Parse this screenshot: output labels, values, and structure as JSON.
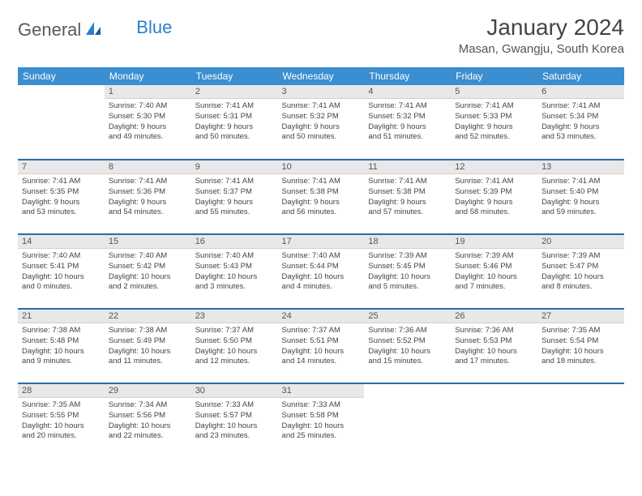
{
  "brand": {
    "part1": "General",
    "part2": "Blue"
  },
  "title": "January 2024",
  "location": "Masan, Gwangju, South Korea",
  "colors": {
    "header_bg": "#3b8ecf",
    "brand_blue": "#2a7fc9",
    "row_border": "#2a6ca8",
    "daynum_bg": "#e8e8e8"
  },
  "daysOfWeek": [
    "Sunday",
    "Monday",
    "Tuesday",
    "Wednesday",
    "Thursday",
    "Friday",
    "Saturday"
  ],
  "weeks": [
    [
      null,
      {
        "n": "1",
        "sr": "Sunrise: 7:40 AM",
        "ss": "Sunset: 5:30 PM",
        "dl1": "Daylight: 9 hours",
        "dl2": "and 49 minutes."
      },
      {
        "n": "2",
        "sr": "Sunrise: 7:41 AM",
        "ss": "Sunset: 5:31 PM",
        "dl1": "Daylight: 9 hours",
        "dl2": "and 50 minutes."
      },
      {
        "n": "3",
        "sr": "Sunrise: 7:41 AM",
        "ss": "Sunset: 5:32 PM",
        "dl1": "Daylight: 9 hours",
        "dl2": "and 50 minutes."
      },
      {
        "n": "4",
        "sr": "Sunrise: 7:41 AM",
        "ss": "Sunset: 5:32 PM",
        "dl1": "Daylight: 9 hours",
        "dl2": "and 51 minutes."
      },
      {
        "n": "5",
        "sr": "Sunrise: 7:41 AM",
        "ss": "Sunset: 5:33 PM",
        "dl1": "Daylight: 9 hours",
        "dl2": "and 52 minutes."
      },
      {
        "n": "6",
        "sr": "Sunrise: 7:41 AM",
        "ss": "Sunset: 5:34 PM",
        "dl1": "Daylight: 9 hours",
        "dl2": "and 53 minutes."
      }
    ],
    [
      {
        "n": "7",
        "sr": "Sunrise: 7:41 AM",
        "ss": "Sunset: 5:35 PM",
        "dl1": "Daylight: 9 hours",
        "dl2": "and 53 minutes."
      },
      {
        "n": "8",
        "sr": "Sunrise: 7:41 AM",
        "ss": "Sunset: 5:36 PM",
        "dl1": "Daylight: 9 hours",
        "dl2": "and 54 minutes."
      },
      {
        "n": "9",
        "sr": "Sunrise: 7:41 AM",
        "ss": "Sunset: 5:37 PM",
        "dl1": "Daylight: 9 hours",
        "dl2": "and 55 minutes."
      },
      {
        "n": "10",
        "sr": "Sunrise: 7:41 AM",
        "ss": "Sunset: 5:38 PM",
        "dl1": "Daylight: 9 hours",
        "dl2": "and 56 minutes."
      },
      {
        "n": "11",
        "sr": "Sunrise: 7:41 AM",
        "ss": "Sunset: 5:38 PM",
        "dl1": "Daylight: 9 hours",
        "dl2": "and 57 minutes."
      },
      {
        "n": "12",
        "sr": "Sunrise: 7:41 AM",
        "ss": "Sunset: 5:39 PM",
        "dl1": "Daylight: 9 hours",
        "dl2": "and 58 minutes."
      },
      {
        "n": "13",
        "sr": "Sunrise: 7:41 AM",
        "ss": "Sunset: 5:40 PM",
        "dl1": "Daylight: 9 hours",
        "dl2": "and 59 minutes."
      }
    ],
    [
      {
        "n": "14",
        "sr": "Sunrise: 7:40 AM",
        "ss": "Sunset: 5:41 PM",
        "dl1": "Daylight: 10 hours",
        "dl2": "and 0 minutes."
      },
      {
        "n": "15",
        "sr": "Sunrise: 7:40 AM",
        "ss": "Sunset: 5:42 PM",
        "dl1": "Daylight: 10 hours",
        "dl2": "and 2 minutes."
      },
      {
        "n": "16",
        "sr": "Sunrise: 7:40 AM",
        "ss": "Sunset: 5:43 PM",
        "dl1": "Daylight: 10 hours",
        "dl2": "and 3 minutes."
      },
      {
        "n": "17",
        "sr": "Sunrise: 7:40 AM",
        "ss": "Sunset: 5:44 PM",
        "dl1": "Daylight: 10 hours",
        "dl2": "and 4 minutes."
      },
      {
        "n": "18",
        "sr": "Sunrise: 7:39 AM",
        "ss": "Sunset: 5:45 PM",
        "dl1": "Daylight: 10 hours",
        "dl2": "and 5 minutes."
      },
      {
        "n": "19",
        "sr": "Sunrise: 7:39 AM",
        "ss": "Sunset: 5:46 PM",
        "dl1": "Daylight: 10 hours",
        "dl2": "and 7 minutes."
      },
      {
        "n": "20",
        "sr": "Sunrise: 7:39 AM",
        "ss": "Sunset: 5:47 PM",
        "dl1": "Daylight: 10 hours",
        "dl2": "and 8 minutes."
      }
    ],
    [
      {
        "n": "21",
        "sr": "Sunrise: 7:38 AM",
        "ss": "Sunset: 5:48 PM",
        "dl1": "Daylight: 10 hours",
        "dl2": "and 9 minutes."
      },
      {
        "n": "22",
        "sr": "Sunrise: 7:38 AM",
        "ss": "Sunset: 5:49 PM",
        "dl1": "Daylight: 10 hours",
        "dl2": "and 11 minutes."
      },
      {
        "n": "23",
        "sr": "Sunrise: 7:37 AM",
        "ss": "Sunset: 5:50 PM",
        "dl1": "Daylight: 10 hours",
        "dl2": "and 12 minutes."
      },
      {
        "n": "24",
        "sr": "Sunrise: 7:37 AM",
        "ss": "Sunset: 5:51 PM",
        "dl1": "Daylight: 10 hours",
        "dl2": "and 14 minutes."
      },
      {
        "n": "25",
        "sr": "Sunrise: 7:36 AM",
        "ss": "Sunset: 5:52 PM",
        "dl1": "Daylight: 10 hours",
        "dl2": "and 15 minutes."
      },
      {
        "n": "26",
        "sr": "Sunrise: 7:36 AM",
        "ss": "Sunset: 5:53 PM",
        "dl1": "Daylight: 10 hours",
        "dl2": "and 17 minutes."
      },
      {
        "n": "27",
        "sr": "Sunrise: 7:35 AM",
        "ss": "Sunset: 5:54 PM",
        "dl1": "Daylight: 10 hours",
        "dl2": "and 18 minutes."
      }
    ],
    [
      {
        "n": "28",
        "sr": "Sunrise: 7:35 AM",
        "ss": "Sunset: 5:55 PM",
        "dl1": "Daylight: 10 hours",
        "dl2": "and 20 minutes."
      },
      {
        "n": "29",
        "sr": "Sunrise: 7:34 AM",
        "ss": "Sunset: 5:56 PM",
        "dl1": "Daylight: 10 hours",
        "dl2": "and 22 minutes."
      },
      {
        "n": "30",
        "sr": "Sunrise: 7:33 AM",
        "ss": "Sunset: 5:57 PM",
        "dl1": "Daylight: 10 hours",
        "dl2": "and 23 minutes."
      },
      {
        "n": "31",
        "sr": "Sunrise: 7:33 AM",
        "ss": "Sunset: 5:58 PM",
        "dl1": "Daylight: 10 hours",
        "dl2": "and 25 minutes."
      },
      null,
      null,
      null
    ]
  ]
}
